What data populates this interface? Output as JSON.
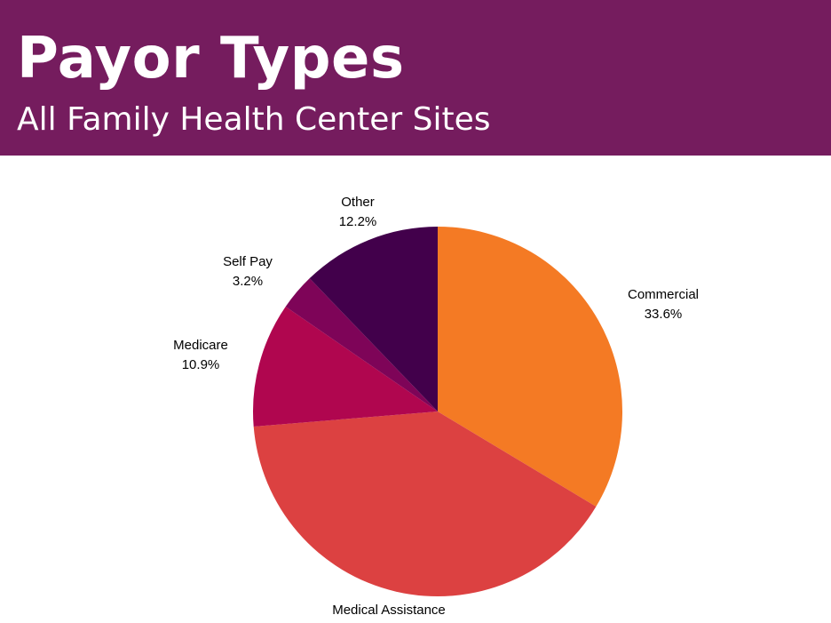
{
  "header": {
    "title": "Payor Types",
    "subtitle": "All Family Health Center Sites",
    "background_color": "#751c5e"
  },
  "chart_data": {
    "type": "pie",
    "title": "Payor Types",
    "subtitle": "All Family Health Center Sites",
    "categories": [
      "Commercial",
      "Medical Assistance",
      "Medicare",
      "Self Pay",
      "Other"
    ],
    "values": [
      33.6,
      40.1,
      10.9,
      3.2,
      12.2
    ],
    "colors": [
      "#f47a24",
      "#dc4141",
      "#b0064f",
      "#7e0458",
      "#42004b"
    ],
    "labels": [
      {
        "name": "Commercial",
        "pct": "33.6%"
      },
      {
        "name": "Medical Assistance",
        "pct": ""
      },
      {
        "name": "Medicare",
        "pct": "10.9%"
      },
      {
        "name": "Self Pay",
        "pct": "3.2%"
      },
      {
        "name": "Other",
        "pct": "12.2%"
      }
    ],
    "start": "12 o'clock",
    "direction": "clockwise",
    "legend": "none (direct labels)"
  }
}
